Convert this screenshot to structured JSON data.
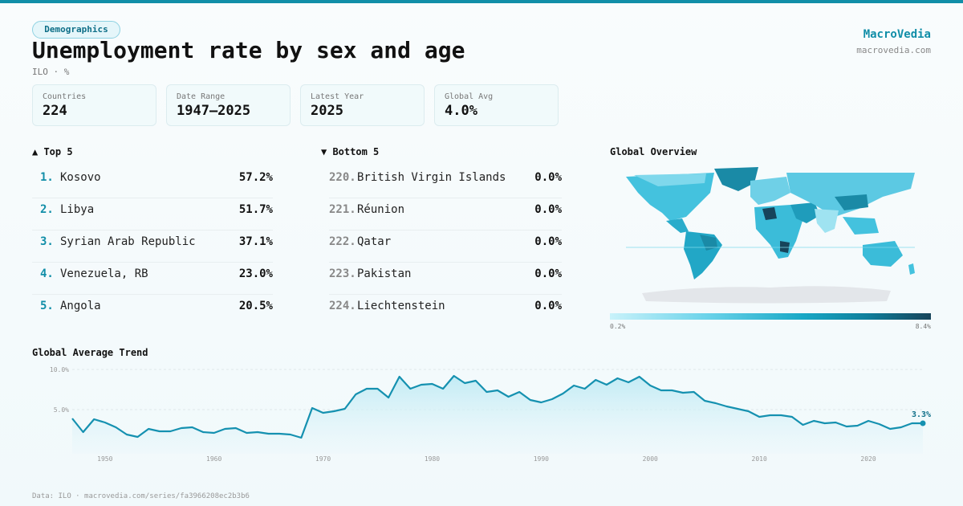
{
  "header": {
    "tag": "Demographics",
    "title": "Unemployment rate by sex and age",
    "subtitle": "ILO · %",
    "brand": "MacroVedia",
    "brand_url": "macrovedia.com"
  },
  "stats": [
    {
      "label": "Countries",
      "value": "224"
    },
    {
      "label": "Date Range",
      "value": "1947–2025"
    },
    {
      "label": "Latest Year",
      "value": "2025"
    },
    {
      "label": "Global Avg",
      "value": "4.0%"
    }
  ],
  "top5": {
    "heading": "▲ Top 5",
    "items": [
      {
        "rank": "1.",
        "name": "Kosovo",
        "value": "57.2%"
      },
      {
        "rank": "2.",
        "name": "Libya",
        "value": "51.7%"
      },
      {
        "rank": "3.",
        "name": "Syrian Arab Republic",
        "value": "37.1%"
      },
      {
        "rank": "4.",
        "name": "Venezuela, RB",
        "value": "23.0%"
      },
      {
        "rank": "5.",
        "name": "Angola",
        "value": "20.5%"
      }
    ]
  },
  "bottom5": {
    "heading": "▼ Bottom 5",
    "items": [
      {
        "rank": "220.",
        "name": "British Virgin Islands",
        "value": "0.0%"
      },
      {
        "rank": "221.",
        "name": "Réunion",
        "value": "0.0%"
      },
      {
        "rank": "222.",
        "name": "Qatar",
        "value": "0.0%"
      },
      {
        "rank": "223.",
        "name": "Pakistan",
        "value": "0.0%"
      },
      {
        "rank": "224.",
        "name": "Liechtenstein",
        "value": "0.0%"
      }
    ]
  },
  "map": {
    "heading": "Global Overview",
    "legend_min": "0.2%",
    "legend_max": "8.4%"
  },
  "trend": {
    "heading": "Global Average Trend",
    "last_label": "3.3%"
  },
  "footer": "Data: ILO · macrovedia.com/series/fa3966208ec2b3b6",
  "colors": {
    "accent": "#118ea8",
    "line": "#1591b0",
    "area": "#bfeaf4"
  },
  "chart_data": {
    "type": "area",
    "x": [
      1947,
      1948,
      1949,
      1950,
      1951,
      1952,
      1953,
      1954,
      1955,
      1956,
      1957,
      1958,
      1959,
      1960,
      1961,
      1962,
      1963,
      1964,
      1965,
      1966,
      1967,
      1968,
      1969,
      1970,
      1971,
      1972,
      1973,
      1974,
      1975,
      1976,
      1977,
      1978,
      1979,
      1980,
      1981,
      1982,
      1983,
      1984,
      1985,
      1986,
      1987,
      1988,
      1989,
      1990,
      1991,
      1992,
      1993,
      1994,
      1995,
      1996,
      1997,
      1998,
      1999,
      2000,
      2001,
      2002,
      2003,
      2004,
      2005,
      2006,
      2007,
      2008,
      2009,
      2010,
      2011,
      2012,
      2013,
      2014,
      2015,
      2016,
      2017,
      2018,
      2019,
      2020,
      2021,
      2022,
      2023,
      2024,
      2025
    ],
    "y": [
      3.9,
      2.2,
      3.8,
      3.4,
      2.8,
      1.9,
      1.6,
      2.6,
      2.3,
      2.3,
      2.7,
      2.8,
      2.2,
      2.1,
      2.6,
      2.7,
      2.1,
      2.2,
      2.0,
      2.0,
      1.9,
      1.5,
      5.2,
      4.6,
      4.8,
      5.1,
      6.9,
      7.6,
      7.6,
      6.5,
      9.1,
      7.6,
      8.1,
      8.2,
      7.6,
      9.2,
      8.3,
      8.6,
      7.2,
      7.4,
      6.6,
      7.2,
      6.2,
      5.9,
      6.3,
      7.0,
      8.0,
      7.6,
      8.7,
      8.1,
      8.9,
      8.4,
      9.1,
      8.0,
      7.4,
      7.4,
      7.1,
      7.2,
      6.1,
      5.8,
      5.4,
      5.1,
      4.8,
      4.1,
      4.3,
      4.3,
      4.1,
      3.1,
      3.6,
      3.3,
      3.4,
      2.9,
      3.0,
      3.6,
      3.2,
      2.6,
      2.8,
      3.3,
      3.3
    ],
    "ylim": [
      0,
      10
    ],
    "yticks": [
      5.0,
      10.0
    ],
    "ytick_labels": [
      "5.0%",
      "10.0%"
    ],
    "xticks": [
      1950,
      1960,
      1970,
      1980,
      1990,
      2000,
      2010,
      2020
    ],
    "grid": true
  }
}
